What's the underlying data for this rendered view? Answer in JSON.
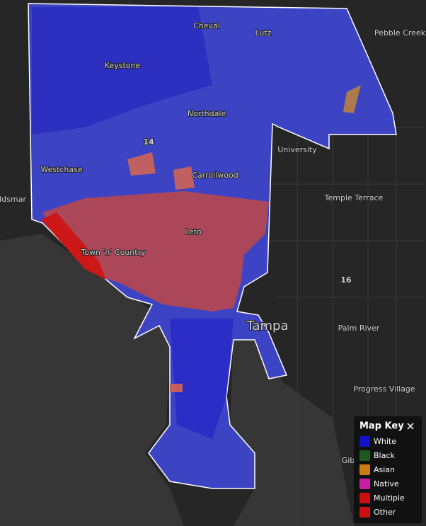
{
  "map": {
    "places": [
      "Cheval",
      "Lutz",
      "Pebble Creek",
      "Keystone",
      "Northdale",
      "14",
      "University",
      "Westchase",
      "Carrollwood",
      "Temple Terrace",
      "ldsmar",
      "Leto",
      "Town 'n' Country",
      "16",
      "Tampa",
      "Palm River",
      "Progress Village",
      "Gib"
    ]
  },
  "legend": {
    "title": "Map Key",
    "items": [
      {
        "label": "White",
        "color": "#1212c8"
      },
      {
        "label": "Black",
        "color": "#1d5a1d"
      },
      {
        "label": "Asian",
        "color": "#cc7a12"
      },
      {
        "label": "Native",
        "color": "#c81ea6"
      },
      {
        "label": "Multiple",
        "color": "#cc1010"
      },
      {
        "label": "Other",
        "color": "#cc1010"
      }
    ]
  }
}
